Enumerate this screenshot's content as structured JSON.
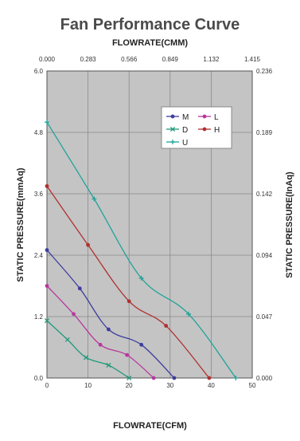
{
  "chart_data": {
    "type": "line",
    "title": "Fan Performance Curve",
    "xlabel_top": "FLOWRATE(CMM)",
    "xlabel": "FLOWRATE(CFM)",
    "ylabel_left": "STATIC PRESSURE(mmAq)",
    "ylabel_right": "STATIC PRESSURE(InAq)",
    "xlim": [
      0,
      50
    ],
    "ylim": [
      0,
      6.0
    ],
    "x_ticks": [
      "0",
      "10",
      "20",
      "30",
      "40",
      "50"
    ],
    "x_top_ticks": [
      "0.000",
      "0.283",
      "0.566",
      "0.849",
      "1.132",
      "1.415"
    ],
    "y_left_ticks": [
      "0.0",
      "1.2",
      "2.4",
      "3.6",
      "4.8",
      "6.0"
    ],
    "y_right_ticks": [
      "0.000",
      "0.047",
      "0.094",
      "0.142",
      "0.189",
      "0.236"
    ],
    "grid": true,
    "legend_position": "top-right",
    "series": [
      {
        "name": "M",
        "color": "#3d3d9e",
        "marker": "dot",
        "x": [
          0,
          8,
          15,
          23,
          31
        ],
        "y": [
          2.5,
          1.75,
          0.95,
          0.65,
          0.0
        ]
      },
      {
        "name": "L",
        "color": "#b8379e",
        "marker": "dot",
        "x": [
          0,
          6.5,
          13,
          19.5,
          26
        ],
        "y": [
          1.8,
          1.25,
          0.65,
          0.45,
          0.0
        ]
      },
      {
        "name": "D",
        "color": "#1f9a7a",
        "marker": "x",
        "x": [
          0,
          5,
          9.5,
          15,
          20
        ],
        "y": [
          1.12,
          0.75,
          0.4,
          0.25,
          0.0
        ]
      },
      {
        "name": "H",
        "color": "#b03030",
        "marker": "dot",
        "x": [
          0,
          10,
          20,
          29,
          39.5
        ],
        "y": [
          3.75,
          2.6,
          1.5,
          1.02,
          0.0
        ]
      },
      {
        "name": "U",
        "color": "#1fa39a",
        "marker": "plus",
        "x": [
          0,
          11.5,
          23,
          34.5,
          46
        ],
        "y": [
          5.0,
          3.5,
          1.95,
          1.25,
          0.0
        ]
      }
    ]
  }
}
